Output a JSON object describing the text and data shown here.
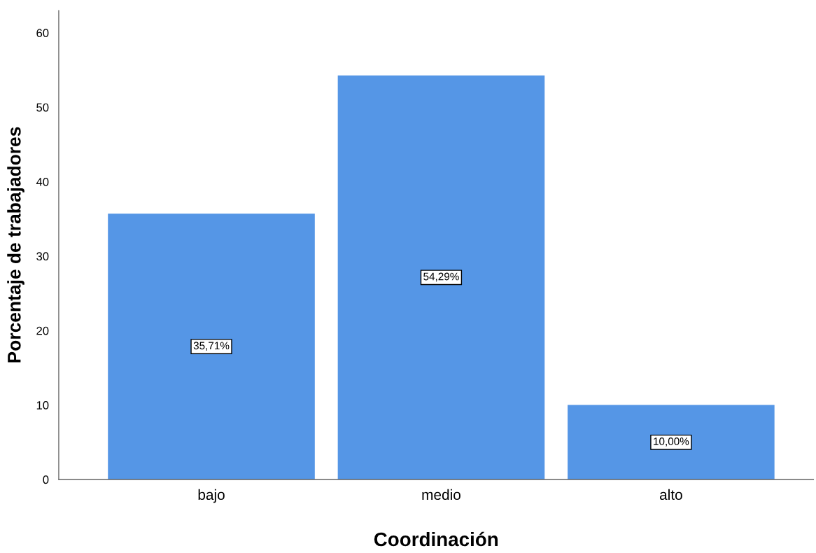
{
  "chart_data": {
    "type": "bar",
    "xlabel": "Coordinación",
    "ylabel": "Porcentaje de trabajadores",
    "categories": [
      "bajo",
      "medio",
      "alto"
    ],
    "values": [
      35.71,
      54.29,
      10.0
    ],
    "value_labels": [
      "35,71%",
      "54,29%",
      "10,00%"
    ],
    "color": "#5596e6",
    "ylim": [
      0,
      63
    ],
    "yticks": [
      0,
      10,
      20,
      30,
      40,
      50,
      60
    ],
    "grid": false,
    "legend": false
  }
}
